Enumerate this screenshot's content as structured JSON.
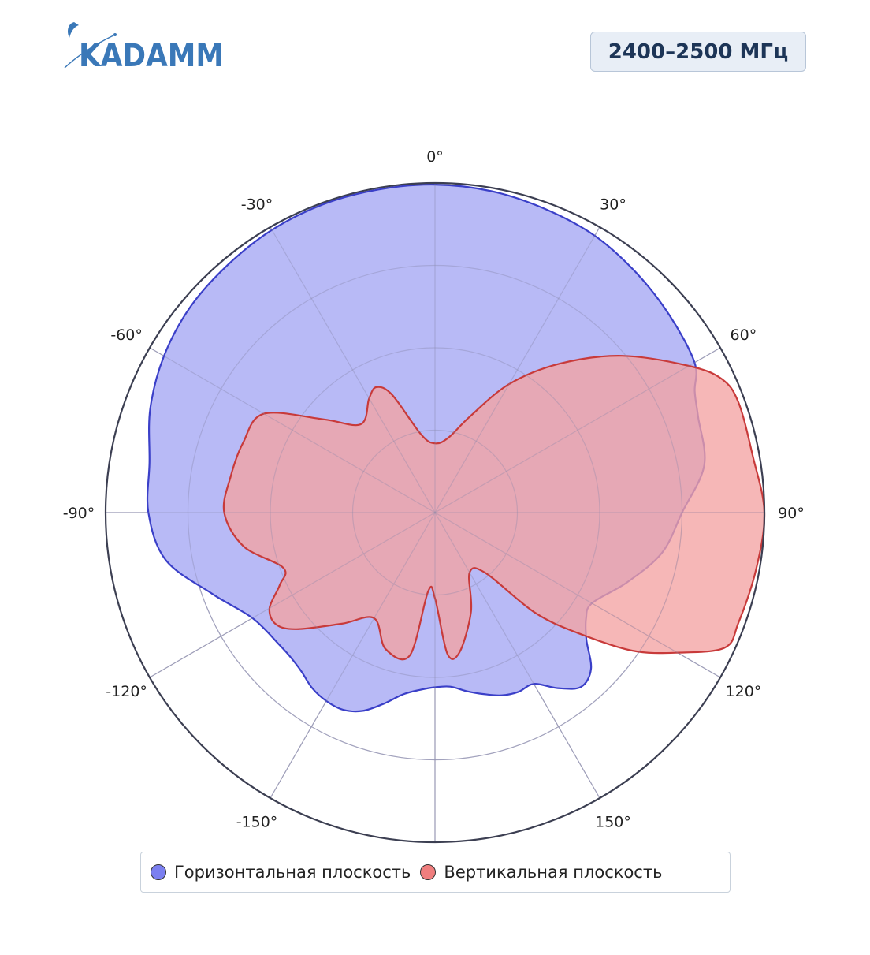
{
  "brand": {
    "logo_text": "KADAMM",
    "logo_color": "#3a78b8"
  },
  "frequency_badge": "2400–2500 МГц",
  "chart_data": {
    "type": "polar-area",
    "angle_unit": "degrees",
    "direction": "clockwise",
    "zero_at": "top",
    "angular_ticks": [
      {
        "angle": 0,
        "label": "0°"
      },
      {
        "angle": 30,
        "label": "30°"
      },
      {
        "angle": 60,
        "label": "60°"
      },
      {
        "angle": 90,
        "label": "90°"
      },
      {
        "angle": 120,
        "label": "120°"
      },
      {
        "angle": 150,
        "label": "150°"
      },
      {
        "angle": 180,
        "label": ""
      },
      {
        "angle": -150,
        "label": "-150°"
      },
      {
        "angle": -120,
        "label": "-120°"
      },
      {
        "angle": -90,
        "label": "-90°"
      },
      {
        "angle": -60,
        "label": "-60°"
      },
      {
        "angle": -30,
        "label": "-30°"
      }
    ],
    "radial_range": [
      0,
      1
    ],
    "radial_gridlines": [
      0.25,
      0.5,
      0.75,
      1.0
    ],
    "grid": true,
    "radial_tick_labels": false,
    "legend_placement": "bottom-center",
    "series": [
      {
        "name": "Горизонтальная плоскость",
        "color": "#7b7ff0",
        "fill": "#b4b6f6",
        "stroke": "#3a3fc8",
        "points": [
          [
            0,
            0.995
          ],
          [
            10,
            0.99
          ],
          [
            20,
            0.98
          ],
          [
            30,
            0.97
          ],
          [
            40,
            0.95
          ],
          [
            50,
            0.93
          ],
          [
            60,
            0.91
          ],
          [
            65,
            0.87
          ],
          [
            70,
            0.85
          ],
          [
            80,
            0.83
          ],
          [
            90,
            0.75
          ],
          [
            100,
            0.7
          ],
          [
            110,
            0.62
          ],
          [
            120,
            0.55
          ],
          [
            125,
            0.56
          ],
          [
            130,
            0.6
          ],
          [
            135,
            0.67
          ],
          [
            140,
            0.69
          ],
          [
            145,
            0.65
          ],
          [
            150,
            0.6
          ],
          [
            155,
            0.6
          ],
          [
            160,
            0.59
          ],
          [
            165,
            0.57
          ],
          [
            170,
            0.55
          ],
          [
            175,
            0.53
          ],
          [
            180,
            0.53
          ],
          [
            185,
            0.54
          ],
          [
            190,
            0.56
          ],
          [
            195,
            0.6
          ],
          [
            200,
            0.64
          ],
          [
            205,
            0.66
          ],
          [
            210,
            0.66
          ],
          [
            215,
            0.65
          ],
          [
            220,
            0.63
          ],
          [
            225,
            0.62
          ],
          [
            230,
            0.62
          ],
          [
            240,
            0.64
          ],
          [
            250,
            0.72
          ],
          [
            260,
            0.83
          ],
          [
            270,
            0.87
          ],
          [
            280,
            0.88
          ],
          [
            290,
            0.92
          ],
          [
            300,
            0.95
          ],
          [
            310,
            0.97
          ],
          [
            320,
            0.98
          ],
          [
            330,
            0.99
          ],
          [
            340,
            0.995
          ],
          [
            350,
            0.995
          ]
        ]
      },
      {
        "name": "Вертикальная плоскость",
        "color": "#f07e7e",
        "fill": "#f4a3a3",
        "stroke": "#c83a3a",
        "points": [
          [
            0,
            0.21
          ],
          [
            10,
            0.23
          ],
          [
            20,
            0.31
          ],
          [
            30,
            0.45
          ],
          [
            40,
            0.59
          ],
          [
            50,
            0.74
          ],
          [
            60,
            0.89
          ],
          [
            65,
            0.96
          ],
          [
            70,
            0.98
          ],
          [
            80,
            0.98
          ],
          [
            90,
            1.0
          ],
          [
            100,
            0.99
          ],
          [
            110,
            0.98
          ],
          [
            115,
            0.97
          ],
          [
            120,
            0.85
          ],
          [
            125,
            0.73
          ],
          [
            130,
            0.57
          ],
          [
            135,
            0.43
          ],
          [
            140,
            0.24
          ],
          [
            150,
            0.21
          ],
          [
            160,
            0.32
          ],
          [
            170,
            0.43
          ],
          [
            175,
            0.43
          ],
          [
            180,
            0.26
          ],
          [
            185,
            0.24
          ],
          [
            190,
            0.44
          ],
          [
            200,
            0.44
          ],
          [
            210,
            0.37
          ],
          [
            220,
            0.44
          ],
          [
            230,
            0.55
          ],
          [
            235,
            0.59
          ],
          [
            240,
            0.58
          ],
          [
            245,
            0.52
          ],
          [
            250,
            0.49
          ],
          [
            260,
            0.59
          ],
          [
            270,
            0.64
          ],
          [
            280,
            0.63
          ],
          [
            290,
            0.62
          ],
          [
            300,
            0.6
          ],
          [
            310,
            0.44
          ],
          [
            320,
            0.35
          ],
          [
            330,
            0.4
          ],
          [
            335,
            0.42
          ],
          [
            340,
            0.38
          ],
          [
            350,
            0.24
          ]
        ]
      }
    ]
  }
}
